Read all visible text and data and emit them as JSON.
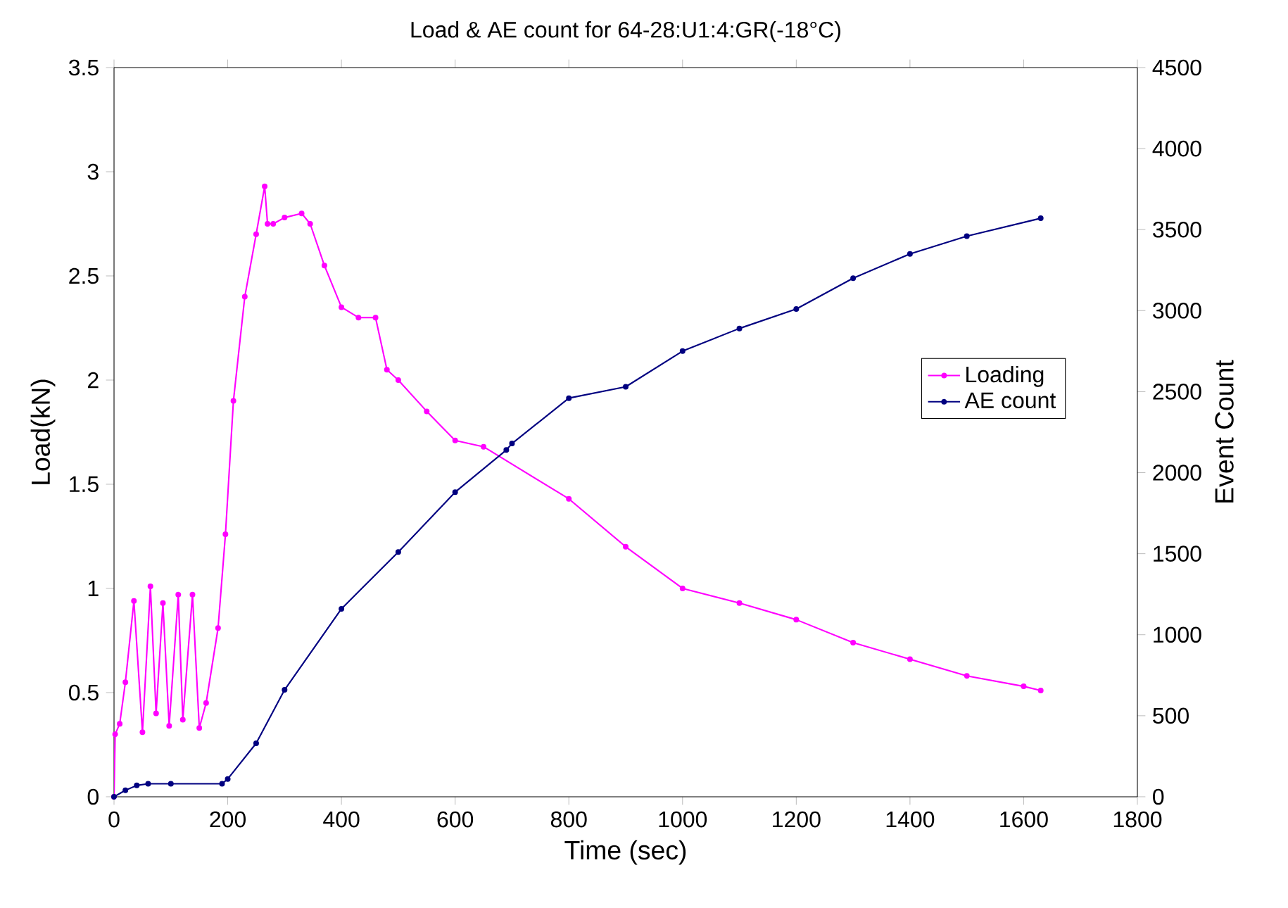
{
  "chart_data": {
    "type": "line",
    "title": "Load & AE count for 64-28:U1:4:GR(-18°C)",
    "xlabel": "Time (sec)",
    "ylabel": "Load(kN)",
    "y2label": "Event Count",
    "xlim": [
      0,
      1800
    ],
    "xticks": [
      0,
      200,
      400,
      600,
      800,
      1000,
      1200,
      1400,
      1600,
      1800
    ],
    "ylim": [
      0,
      3.5
    ],
    "yticks": [
      0,
      0.5,
      1,
      1.5,
      2,
      2.5,
      3,
      3.5
    ],
    "y2lim": [
      0,
      4500
    ],
    "y2ticks": [
      0,
      500,
      1000,
      1500,
      2000,
      2500,
      3000,
      3500,
      4000,
      4500
    ],
    "legend": "right",
    "marker": "circle",
    "grid": false,
    "series": [
      {
        "name": "Loading",
        "color": "#ff00ff",
        "x": [
          0,
          2,
          10,
          20,
          35,
          50,
          64,
          74,
          86,
          97,
          113,
          121,
          138,
          150,
          162,
          183,
          196,
          210,
          230,
          250,
          265,
          270,
          280,
          300,
          330,
          345,
          370,
          400,
          430,
          460,
          480,
          500,
          550,
          600,
          650,
          800,
          900,
          1000,
          1100,
          1200,
          1300,
          1400,
          1500,
          1600,
          1630
        ],
        "values": [
          0,
          0.3,
          0.35,
          0.55,
          0.94,
          0.31,
          1.01,
          0.4,
          0.93,
          0.34,
          0.97,
          0.37,
          0.97,
          0.33,
          0.45,
          0.81,
          1.26,
          1.9,
          2.4,
          2.7,
          2.93,
          2.75,
          2.75,
          2.78,
          2.8,
          2.75,
          2.55,
          2.35,
          2.3,
          2.3,
          2.05,
          2.0,
          1.85,
          1.71,
          1.68,
          1.43,
          1.2,
          1.0,
          0.93,
          0.85,
          0.74,
          0.66,
          0.58,
          0.53,
          0.51
        ]
      },
      {
        "name": "AE count",
        "color": "#000080",
        "axis": "y2",
        "x": [
          0,
          20,
          40,
          60,
          100,
          190,
          200,
          250,
          300,
          400,
          500,
          600,
          690,
          700,
          800,
          900,
          1000,
          1100,
          1200,
          1300,
          1400,
          1500,
          1630
        ],
        "values": [
          0,
          40,
          70,
          80,
          80,
          80,
          110,
          330,
          660,
          1160,
          1510,
          1880,
          2140,
          2180,
          2460,
          2530,
          2750,
          2890,
          3010,
          3200,
          3350,
          3460,
          3570
        ]
      }
    ]
  }
}
